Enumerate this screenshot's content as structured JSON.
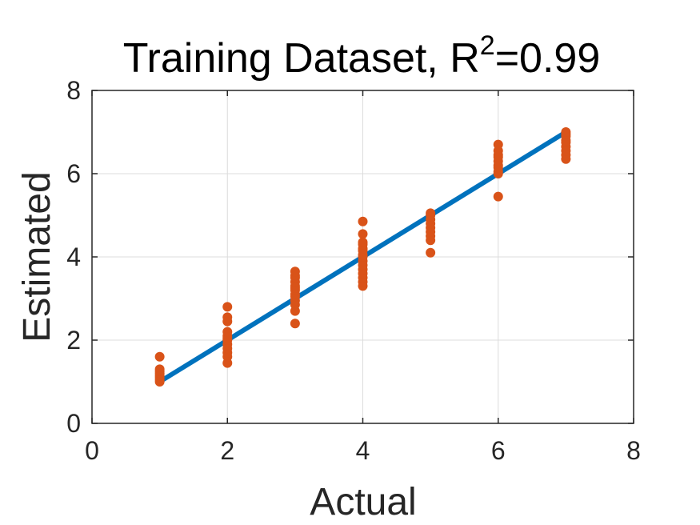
{
  "chart_data": {
    "type": "scatter",
    "title": {
      "prefix": "Training Dataset, R",
      "superscript": "2",
      "suffix": "=0.99"
    },
    "xlabel": "Actual",
    "ylabel": "Estimated",
    "xlim": [
      0,
      8
    ],
    "ylim": [
      0,
      8
    ],
    "xticks": [
      0,
      2,
      4,
      6,
      8
    ],
    "yticks": [
      0,
      2,
      4,
      6,
      8
    ],
    "grid": true,
    "colors": {
      "line": "#0072BD",
      "points": "#D95319",
      "grid": "#DCDCDC",
      "axes": "#262626"
    },
    "series": [
      {
        "kind": "line",
        "x": [
          1,
          7
        ],
        "y": [
          1,
          7
        ]
      },
      {
        "kind": "scatter",
        "x": [
          1,
          1,
          1,
          1,
          1,
          1,
          1,
          1,
          2,
          2,
          2,
          2,
          2,
          2,
          2,
          2,
          2,
          2,
          2,
          2,
          3,
          3,
          3,
          3,
          3,
          3,
          3,
          3,
          3,
          3,
          3,
          3,
          3,
          4,
          4,
          4,
          4,
          4,
          4,
          4,
          4,
          4,
          4,
          4,
          4,
          4,
          4,
          4,
          5,
          5,
          5,
          5,
          5,
          5,
          5,
          5,
          5,
          6,
          6,
          6,
          6,
          6,
          6,
          6,
          6,
          6,
          6,
          7,
          7,
          7,
          7,
          7,
          7,
          7,
          7,
          7
        ],
        "y": [
          1.0,
          1.05,
          1.1,
          1.15,
          1.2,
          1.25,
          1.3,
          1.6,
          1.45,
          1.6,
          1.7,
          1.8,
          1.9,
          2.0,
          2.05,
          2.1,
          2.2,
          2.45,
          2.55,
          2.8,
          2.4,
          2.7,
          2.85,
          2.95,
          3.05,
          3.1,
          3.2,
          3.25,
          3.3,
          3.4,
          3.5,
          3.55,
          3.65,
          3.3,
          3.4,
          3.5,
          3.6,
          3.7,
          3.8,
          3.9,
          4.0,
          4.05,
          4.15,
          4.2,
          4.3,
          4.35,
          4.55,
          4.85,
          4.1,
          4.4,
          4.5,
          4.6,
          4.7,
          4.8,
          4.9,
          5.0,
          5.05,
          5.45,
          6.0,
          6.05,
          6.15,
          6.2,
          6.3,
          6.4,
          6.45,
          6.55,
          6.7,
          6.35,
          6.45,
          6.55,
          6.65,
          6.75,
          6.8,
          6.9,
          6.95,
          7.0
        ]
      }
    ]
  }
}
